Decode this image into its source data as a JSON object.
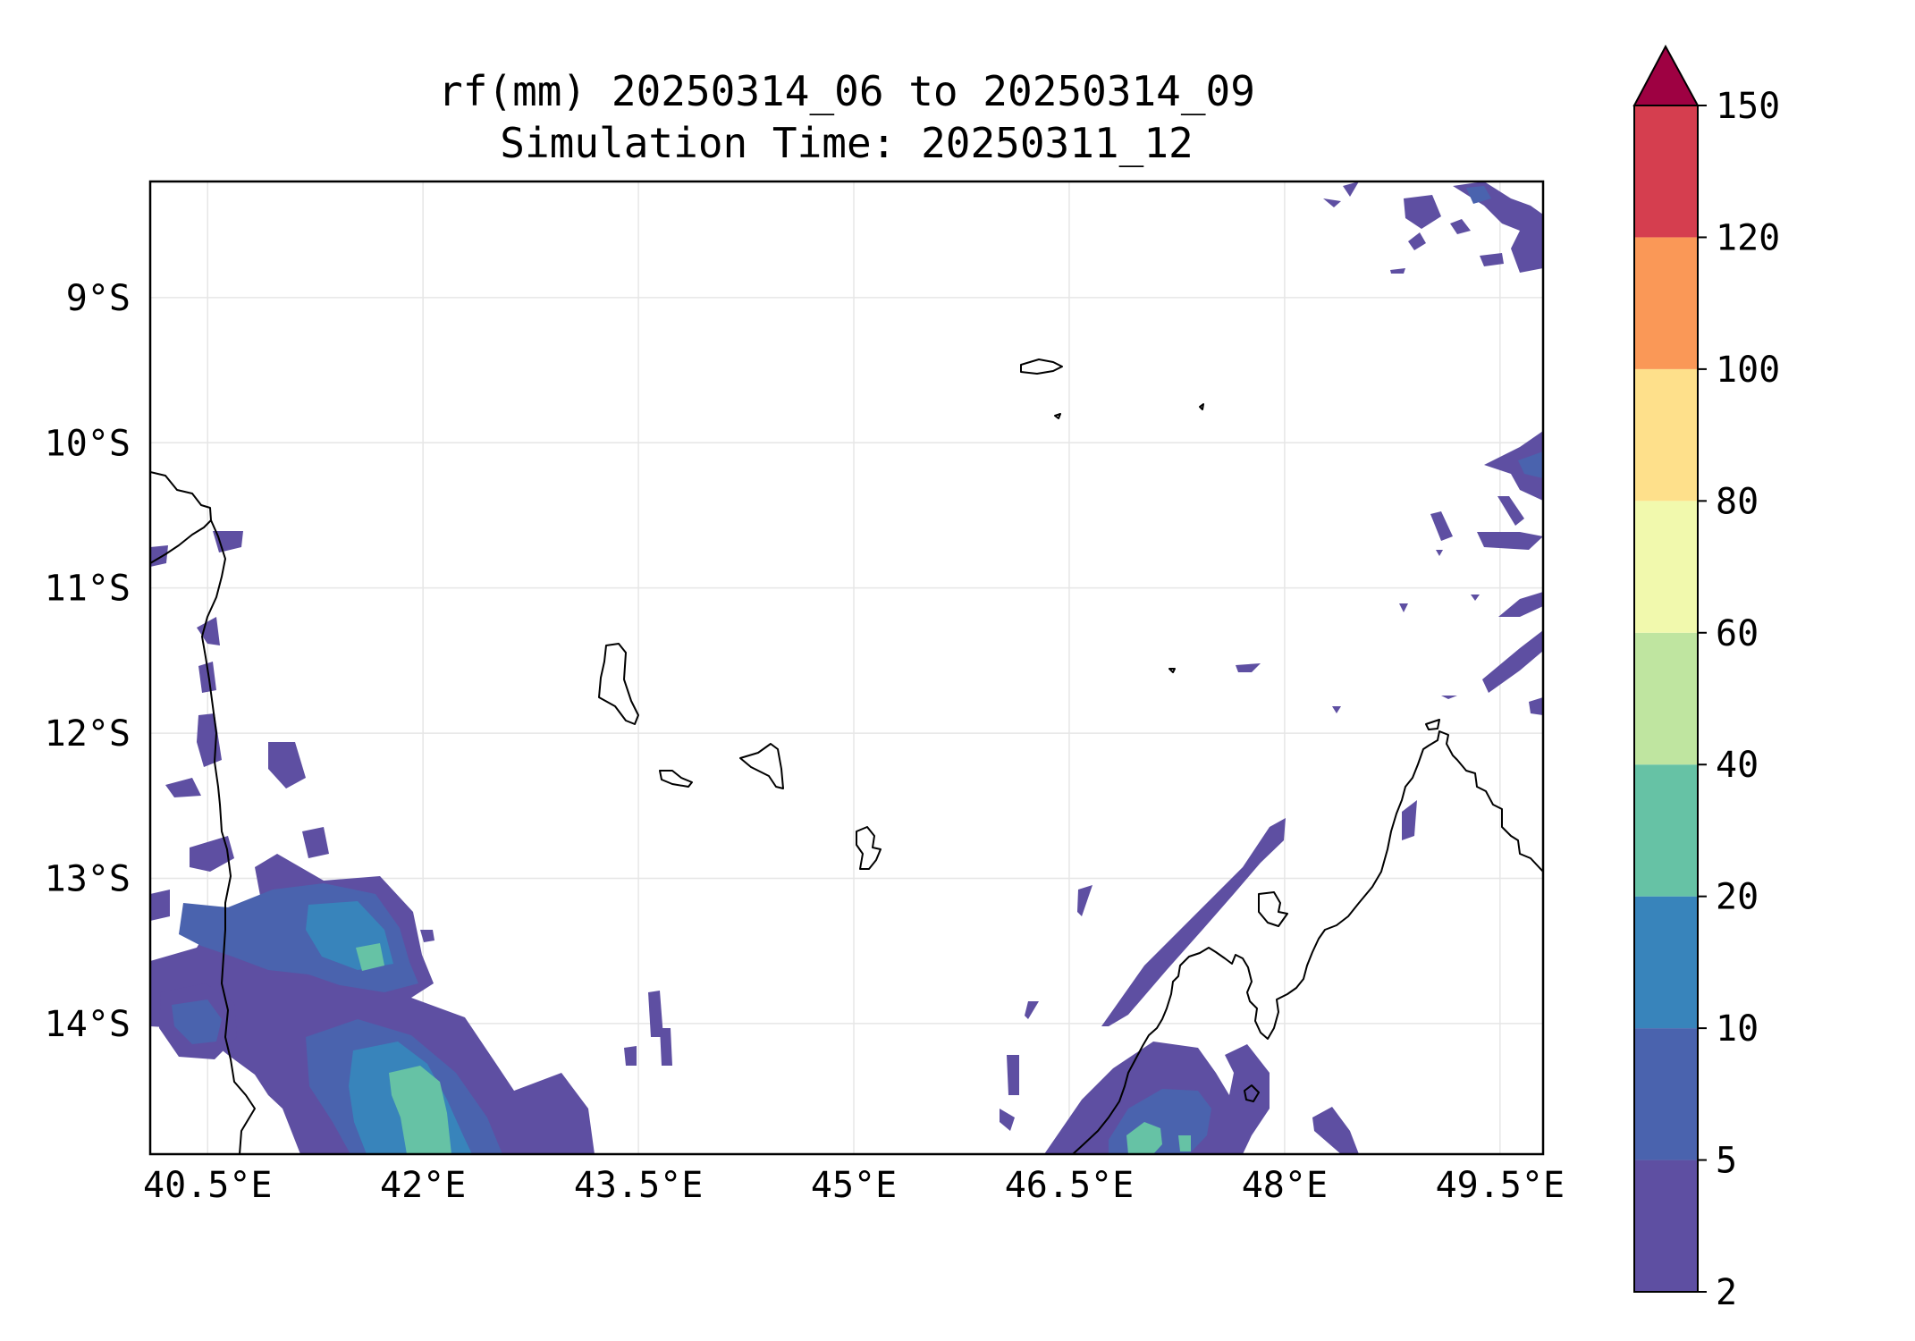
{
  "title": {
    "line1": "rf(mm) 20250314_06 to 20250314_09",
    "line2": "Simulation Time: 20250311_12"
  },
  "map": {
    "lon_range": [
      40.1,
      49.8
    ],
    "lat_range": [
      -14.9,
      -8.2
    ],
    "gridlines": true,
    "x_ticks": [
      {
        "value": 40.5,
        "label": "40.5°E"
      },
      {
        "value": 42.0,
        "label": "42°E"
      },
      {
        "value": 43.5,
        "label": "43.5°E"
      },
      {
        "value": 45.0,
        "label": "45°E"
      },
      {
        "value": 46.5,
        "label": "46.5°E"
      },
      {
        "value": 48.0,
        "label": "48°E"
      },
      {
        "value": 49.5,
        "label": "49.5°E"
      }
    ],
    "y_ticks": [
      {
        "value": -9,
        "label": "9°S"
      },
      {
        "value": -10,
        "label": "10°S"
      },
      {
        "value": -11,
        "label": "11°S"
      },
      {
        "value": -12,
        "label": "12°S"
      },
      {
        "value": -13,
        "label": "13°S"
      },
      {
        "value": -14,
        "label": "14°S"
      }
    ]
  },
  "colorbar": {
    "extend": "max",
    "extend_color": "#9e0142",
    "levels": [
      {
        "from": 2,
        "to": 5,
        "color": "#5e4fa2"
      },
      {
        "from": 5,
        "to": 10,
        "color": "#4a63ae"
      },
      {
        "from": 10,
        "to": 20,
        "color": "#3884bb"
      },
      {
        "from": 20,
        "to": 40,
        "color": "#66c2a5"
      },
      {
        "from": 40,
        "to": 60,
        "color": "#bfe5a0"
      },
      {
        "from": 60,
        "to": 80,
        "color": "#f1f9ad"
      },
      {
        "from": 80,
        "to": 100,
        "color": "#fee08b"
      },
      {
        "from": 100,
        "to": 120,
        "color": "#fa9857"
      },
      {
        "from": 120,
        "to": 150,
        "color": "#d53e4f"
      }
    ],
    "tick_labels": [
      "2",
      "5",
      "10",
      "20",
      "40",
      "60",
      "80",
      "100",
      "120",
      "150"
    ]
  }
}
